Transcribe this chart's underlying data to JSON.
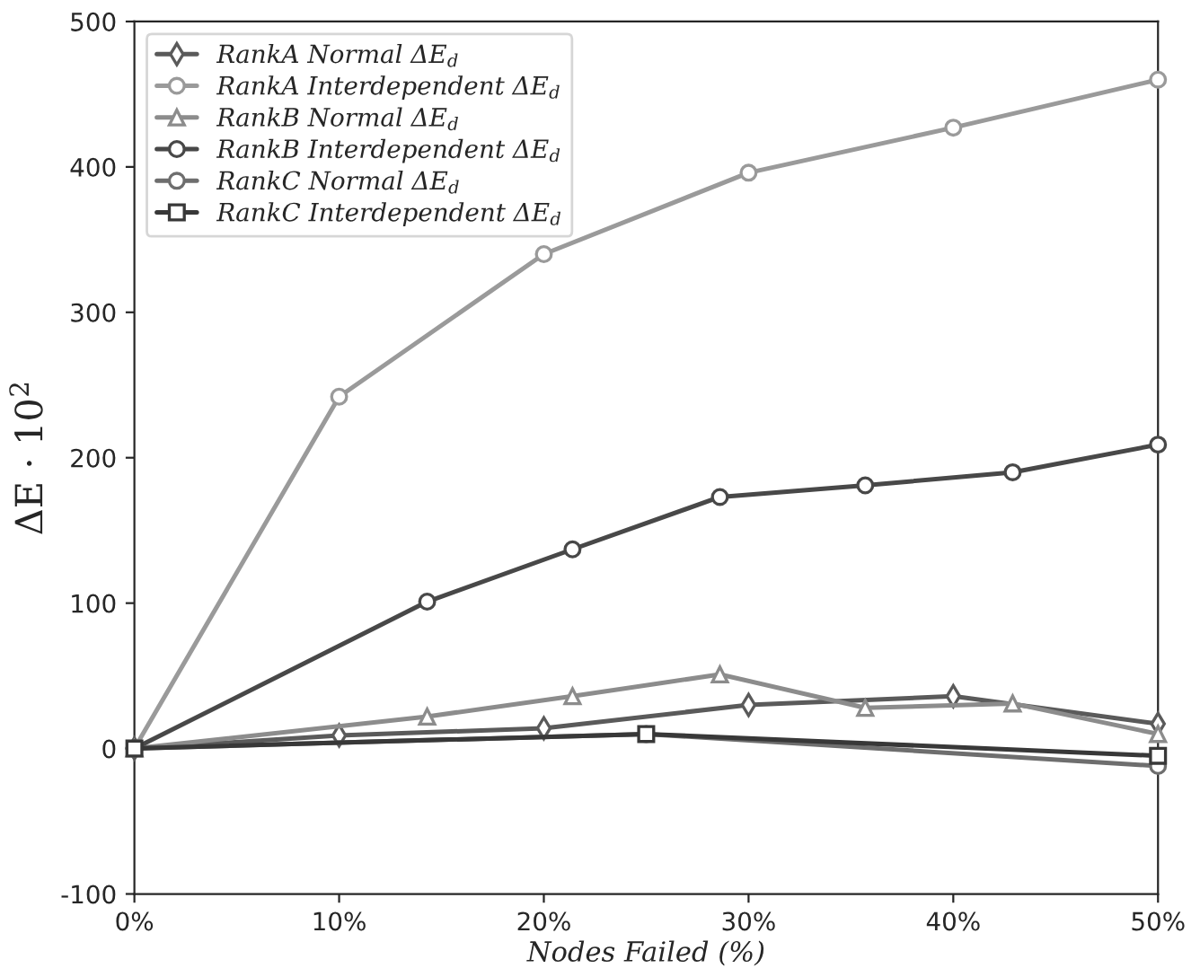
{
  "chart_data": {
    "type": "line",
    "xlabel": "Nodes Failed (%)",
    "ylabel": "ΔE · 10$^{2}$",
    "xlim": [
      0,
      50
    ],
    "ylim": [
      -100,
      500
    ],
    "xticks": [
      {
        "value": 0,
        "label": "0%"
      },
      {
        "value": 10,
        "label": "10%"
      },
      {
        "value": 20,
        "label": "20%"
      },
      {
        "value": 30,
        "label": "30%"
      },
      {
        "value": 40,
        "label": "40%"
      },
      {
        "value": 50,
        "label": "50%"
      }
    ],
    "yticks": [
      -100,
      0,
      100,
      200,
      300,
      400,
      500
    ],
    "grid": false,
    "legend": "top left",
    "series": [
      {
        "name": "RankA Normal ΔE$_{d}$",
        "color": "#5a5a5a",
        "marker": "diamond",
        "x": [
          0,
          10,
          20,
          30,
          40,
          50
        ],
        "values": [
          0,
          9,
          14,
          30,
          36,
          17
        ]
      },
      {
        "name": "RankA Interdependent ΔE$_{d}$",
        "color": "#9a9a9a",
        "marker": "circle",
        "x": [
          0,
          10,
          20,
          30,
          40,
          50
        ],
        "values": [
          0,
          242,
          340,
          396,
          427,
          460
        ]
      },
      {
        "name": "RankB Normal ΔE$_{d}$",
        "color": "#8c8c8c",
        "marker": "triangle",
        "x": [
          0,
          14.3,
          21.4,
          28.6,
          35.7,
          42.9,
          50
        ],
        "values": [
          0,
          22,
          36,
          51,
          28,
          31,
          10
        ]
      },
      {
        "name": "RankB Interdependent ΔE$_{d}$",
        "color": "#484848",
        "marker": "circle",
        "x": [
          0,
          14.3,
          21.4,
          28.6,
          35.7,
          42.9,
          50
        ],
        "values": [
          0,
          101,
          137,
          173,
          181,
          190,
          209
        ]
      },
      {
        "name": "RankC Normal ΔE$_{d}$",
        "color": "#6e6e6e",
        "marker": "circle",
        "x": [
          0,
          25,
          50
        ],
        "values": [
          0,
          10,
          -12
        ]
      },
      {
        "name": "RankC Interdependent ΔE$_{d}$",
        "color": "#383838",
        "marker": "square",
        "x": [
          0,
          25,
          50
        ],
        "values": [
          0,
          10,
          -5
        ]
      }
    ]
  }
}
